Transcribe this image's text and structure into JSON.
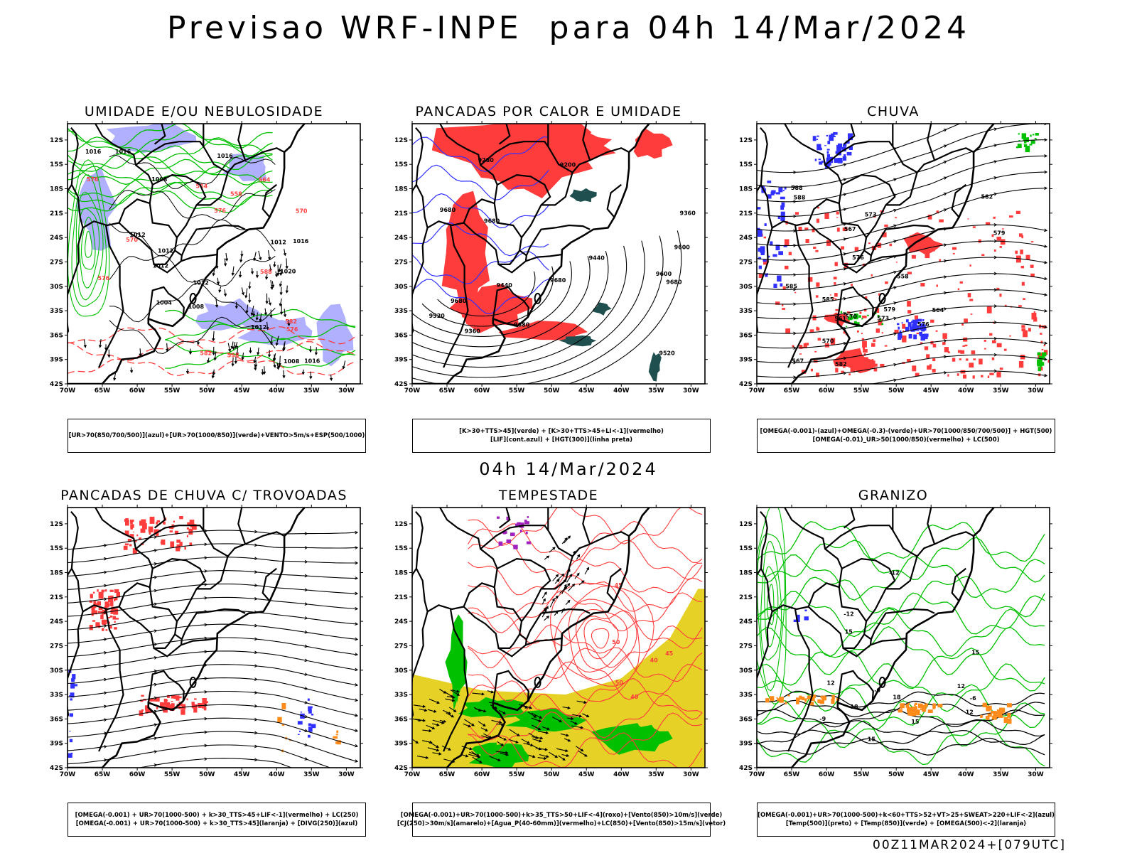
{
  "header": {
    "title": "Previsao WRF-INPE  para 04h 14/Mar/2024",
    "mid_date": "04h 14/Mar/2024",
    "footer": "00Z11MAR2024+[079UTC]"
  },
  "axes": {
    "lat_ticks": [
      "12S",
      "15S",
      "18S",
      "21S",
      "24S",
      "27S",
      "30S",
      "33S",
      "36S",
      "39S",
      "42S"
    ],
    "lon_ticks": [
      "70W",
      "65W",
      "60W",
      "55W",
      "50W",
      "45W",
      "40W",
      "35W",
      "30W"
    ]
  },
  "colors": {
    "blue": "#3030ff",
    "green": "#00c000",
    "red": "#ff3c3c",
    "lightblue": "#b0b0ff",
    "yellow": "#e6d227",
    "darkgreen": "#1f4f4f",
    "purple": "#a020c0",
    "orange": "#ff8c1a"
  },
  "panels": [
    {
      "id": "umidade",
      "title": "UMIDADE E/OU NEBULOSIDADE",
      "legend": [
        "[UR>70(850/700/500)](azul)+[UR>70(1000/850)](verde)+VENTO>5m/s+ESP(500/1000)"
      ],
      "labels": [
        "1012",
        "1012",
        "1016",
        "1020",
        "1016",
        "1008",
        "1008",
        "1012",
        "1004",
        "1012",
        "1016",
        "1016",
        "1016",
        "1008",
        "1012",
        "1012",
        "576",
        "576",
        "576",
        "570",
        "582",
        "564",
        "558",
        "564",
        "570",
        "576",
        "582",
        "558",
        "588"
      ]
    },
    {
      "id": "pancadas-calor",
      "title": "PANCADAS POR CALOR E UMIDADE",
      "legend": [
        "[K>30+TTS>45](verde) + [K>30+TTS>45+LI<-1](vermelho)",
        "[LIF](cont.azul) + [HGT(300)](linha preta)"
      ],
      "labels": [
        "9680",
        "9680",
        "9680",
        "9680",
        "9680",
        "9600",
        "9520",
        "9440",
        "9360",
        "9280",
        "9200",
        "9520",
        "9440",
        "9360",
        "9600",
        "9680"
      ]
    },
    {
      "id": "chuva",
      "title": "CHUVA",
      "legend": [
        "[OMEGA(-0.001)-(azul)+OMEGA(-0.3)-(verde)+UR>70(1000/850/700/500)] + HGT(500)",
        "[OMEGA(-0.01)_UR>50(1000/850)(vermelho) + LC(500)"
      ],
      "labels": [
        "588",
        "588",
        "585",
        "582",
        "579",
        "576",
        "573",
        "570",
        "567",
        "564",
        "561",
        "558",
        "582",
        "585",
        "579",
        "576",
        "573",
        "570",
        "567"
      ]
    },
    {
      "id": "trovoadas",
      "title": "PANCADAS DE CHUVA C/ TROVOADAS",
      "legend": [
        "[OMEGA(-0.001) + UR>70(1000-500) + k>30_TTS>45+LIF<-1](vermelho) + LC(250)",
        "[OMEGA(-0.001) + UR>70(1000-500) + k>30_TTS>45](laranja) + [DIVG(250)](azul)"
      ],
      "labels": []
    },
    {
      "id": "tempestade",
      "title": "TEMPESTADE",
      "legend": [
        "[OMEGA(-0.001)+UR>70(1000-500)+k>35_TTS>50+LIF<-4](roxo)+[Vento(850)>10m/s](verde)",
        "[CJ(250)>30m/s](amarelo)+[Agua_P(40-60mm)](vermelho)+LC(850)+[Vento(850)>15m/s](vetor)"
      ],
      "labels": [
        "50",
        "40",
        "50",
        "45",
        "40",
        "45"
      ]
    },
    {
      "id": "granizo",
      "title": "GRANIZO",
      "legend": [
        "[OMEGA(-0.001)+UR>70(1000-500)+k<60+TTS>52+VT>25+SWEAT>220+LIF<-2](azul)",
        "[Temp(500)](preto) + [Temp(850)](verde) + [OMEGA(500)<-2](laranja)"
      ],
      "labels": [
        "-9",
        "-6",
        "-9",
        "-12",
        "-12",
        "15",
        "12",
        "15",
        "18",
        "18",
        "15",
        "12",
        "12",
        "15"
      ]
    }
  ]
}
